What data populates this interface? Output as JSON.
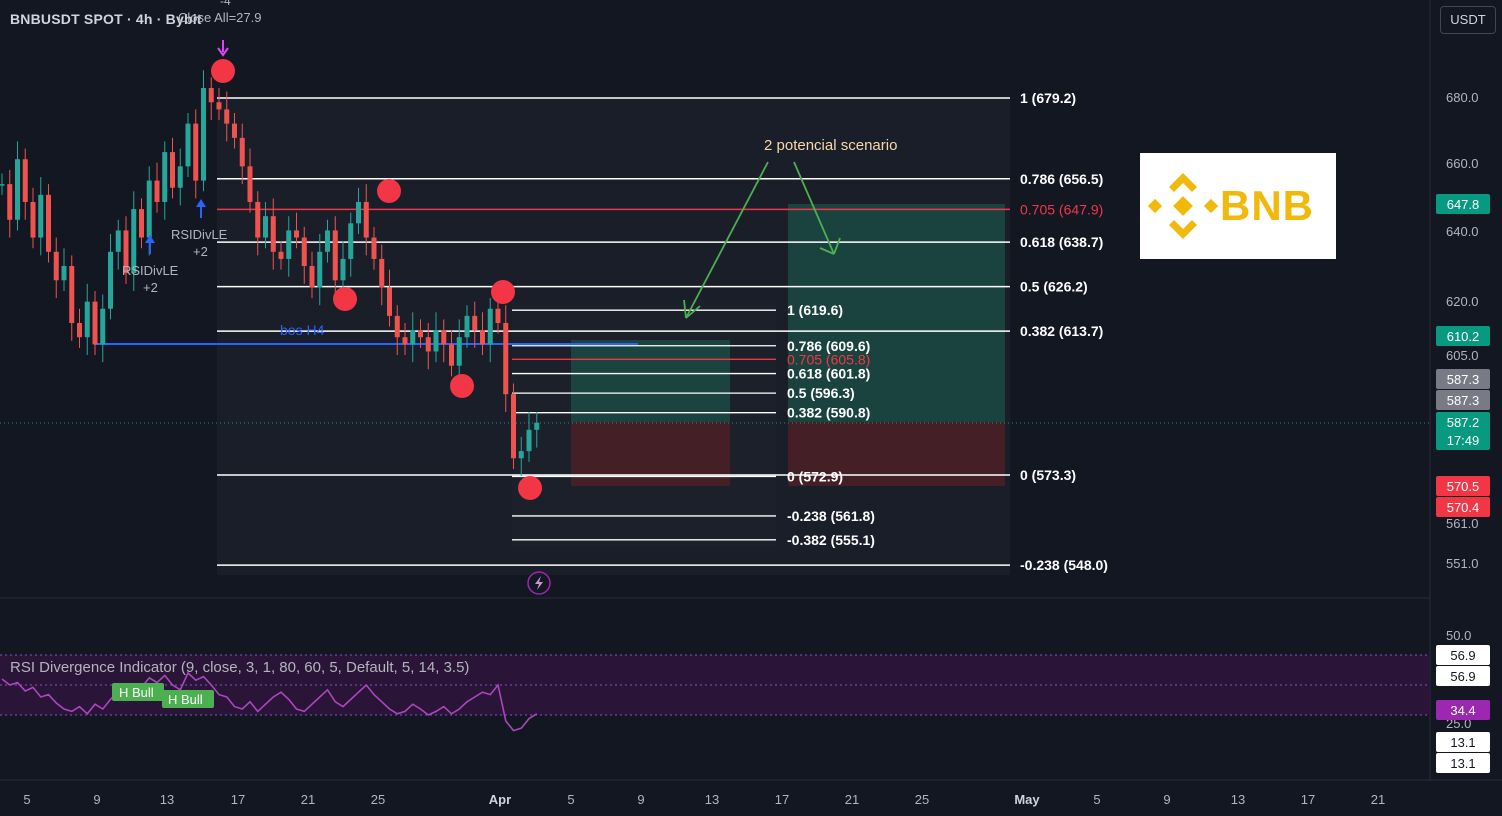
{
  "header": {
    "symbol_title": "BNBUSDT SPOT · 4h · Bybit",
    "overlay_text": "Close All=27.9",
    "overlay_num": "-4",
    "currency_button": "USDT"
  },
  "logo": {
    "text": "BNB",
    "color": "#f0b90b"
  },
  "annotations": {
    "scenario": "2 potencial scenario",
    "bos": "bos H4",
    "rsi_div_1": "RSIDivLE",
    "rsi_div_1_val": "+2",
    "rsi_div_2": "RSIDivLE",
    "rsi_div_2_val": "+2",
    "h_bull_1": "H Bull",
    "h_bull_2": "H Bull"
  },
  "rsi": {
    "label": "RSI Divergence Indicator (9, close, 3, 1, 80, 60, 5, Default, 5, 14, 3.5)"
  },
  "colors": {
    "background": "#131722",
    "up": "#26a69a",
    "down": "#ef5350",
    "fib_red": "#f23645",
    "bos_blue": "#2962ff",
    "rsi_purple": "#9c27b0",
    "scenario_arrow": "#4caf50"
  },
  "chart_data": {
    "type": "candlestick",
    "x_tick_labels": [
      "5",
      "9",
      "13",
      "17",
      "21",
      "25",
      "Apr",
      "5",
      "9",
      "13",
      "17",
      "21",
      "25",
      "May",
      "5",
      "9",
      "13",
      "17",
      "21"
    ],
    "y_tick_labels": [
      "680.0",
      "660.0",
      "640.0",
      "620.0",
      "605.0",
      "561.0",
      "551.0"
    ],
    "rsi_tick_labels": [
      "50.0",
      "25.0"
    ],
    "price_tags": [
      {
        "value": "647.8",
        "color": "#089981"
      },
      {
        "value": "610.2",
        "color": "#089981"
      },
      {
        "value": "587.3",
        "color": "#787b86"
      },
      {
        "value": "587.3",
        "color": "#787b86"
      },
      {
        "value": "587.2",
        "color": "#089981"
      },
      {
        "value": "17:49",
        "color": "#089981"
      },
      {
        "value": "570.5",
        "color": "#f23645"
      },
      {
        "value": "570.4",
        "color": "#f23645"
      }
    ],
    "rsi_tags": [
      {
        "value": "56.9",
        "color": "#ffffff"
      },
      {
        "value": "56.9",
        "color": "#ffffff"
      },
      {
        "value": "34.4",
        "color": "#9c27b0"
      },
      {
        "value": "13.1",
        "color": "#ffffff"
      },
      {
        "value": "13.1",
        "color": "#ffffff"
      }
    ],
    "fib_large": [
      {
        "label": "1 (679.2)",
        "price": 679.2,
        "red": false
      },
      {
        "label": "0.786 (656.5)",
        "price": 656.5,
        "red": false
      },
      {
        "label": "0.705 (647.9)",
        "price": 647.9,
        "red": true
      },
      {
        "label": "0.618 (638.7)",
        "price": 638.7,
        "red": false
      },
      {
        "label": "0.5 (626.2)",
        "price": 626.2,
        "red": false
      },
      {
        "label": "0.382 (613.7)",
        "price": 613.7,
        "red": false
      },
      {
        "label": "0 (573.3)",
        "price": 573.3,
        "red": false
      },
      {
        "label": "-0.238 (548.0)",
        "price": 548.0,
        "red": false
      }
    ],
    "fib_small": [
      {
        "label": "1 (619.6)",
        "price": 619.6,
        "red": false
      },
      {
        "label": "0.786 (609.6)",
        "price": 609.6,
        "red": false
      },
      {
        "label": "0.705 (605.8)",
        "price": 605.8,
        "red": true
      },
      {
        "label": "0.618 (601.8)",
        "price": 601.8,
        "red": false
      },
      {
        "label": "0.5 (596.3)",
        "price": 596.3,
        "red": false
      },
      {
        "label": "0.382 (590.8)",
        "price": 590.8,
        "red": false
      },
      {
        "label": "0 (572.9)",
        "price": 572.9,
        "red": false
      },
      {
        "label": "-0.238 (561.8)",
        "price": 561.8,
        "red": false
      },
      {
        "label": "-0.382 (555.1)",
        "price": 555.1,
        "red": false
      }
    ],
    "close_path": [
      655,
      645,
      662,
      650,
      640,
      652,
      636,
      628,
      632,
      616,
      612,
      622,
      610,
      620,
      636,
      642,
      630,
      648,
      640,
      656,
      650,
      664,
      654,
      660,
      672,
      656,
      682,
      678,
      676,
      672,
      668,
      660,
      650,
      640,
      646,
      636,
      634,
      642,
      640,
      632,
      626,
      636,
      642,
      628,
      634,
      644,
      650,
      640,
      634,
      626,
      618,
      612,
      610,
      614,
      612,
      608,
      614,
      610,
      604,
      612,
      618,
      614,
      610,
      620,
      616,
      596,
      578,
      580,
      586,
      588
    ],
    "last_price": 587.2
  }
}
